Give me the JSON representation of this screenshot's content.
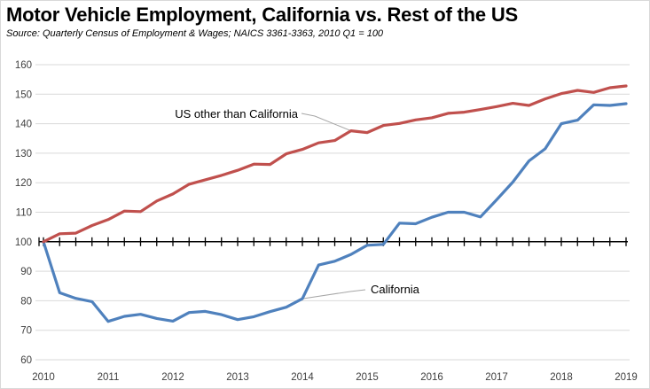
{
  "chart_data": {
    "type": "line",
    "title": "Motor Vehicle Employment, California vs. Rest of the US",
    "subtitle": "Source:  Quarterly Census of Employment & Wages; NAICS 3361-3363, 2010 Q1 = 100",
    "xlabel": "",
    "ylabel": "",
    "xlim": [
      2010,
      2019
    ],
    "ylim": [
      60,
      160
    ],
    "x_ticks": [
      "2010",
      "2011",
      "2012",
      "2013",
      "2014",
      "2015",
      "2016",
      "2017",
      "2018",
      "2019"
    ],
    "y_ticks": [
      "60",
      "70",
      "80",
      "90",
      "100",
      "110",
      "120",
      "130",
      "140",
      "150",
      "160"
    ],
    "baseline": 100,
    "grid": true,
    "legend": "none",
    "x": [
      2010.0,
      2010.25,
      2010.5,
      2010.75,
      2011.0,
      2011.25,
      2011.5,
      2011.75,
      2012.0,
      2012.25,
      2012.5,
      2012.75,
      2013.0,
      2013.25,
      2013.5,
      2013.75,
      2014.0,
      2014.25,
      2014.5,
      2014.75,
      2015.0,
      2015.25,
      2015.5,
      2015.75,
      2016.0,
      2016.25,
      2016.5,
      2016.75,
      2017.0,
      2017.25,
      2017.5,
      2017.75,
      2018.0,
      2018.25,
      2018.5,
      2018.75,
      2019.0
    ],
    "series": [
      {
        "name": "US other than California",
        "color": "#c0504d",
        "values": [
          100,
          102.7,
          102.9,
          105.5,
          107.5,
          110.4,
          110.2,
          113.8,
          116.2,
          119.5,
          121,
          122.5,
          124.2,
          126.3,
          126.2,
          129.8,
          131.3,
          133.5,
          134.3,
          137.6,
          137,
          139.4,
          140.1,
          141.3,
          142,
          143.5,
          143.9,
          144.8,
          145.8,
          146.9,
          146.2,
          148.4,
          150.2,
          151.3,
          150.6,
          152.2,
          152.8
        ]
      },
      {
        "name": "California",
        "color": "#4f81bd",
        "values": [
          100,
          82.7,
          80.8,
          79.7,
          73,
          74.7,
          75.4,
          74,
          73.1,
          76,
          76.4,
          75.3,
          73.6,
          74.6,
          76.3,
          77.8,
          80.7,
          92.1,
          93.4,
          95.7,
          98.8,
          99.1,
          106.3,
          106.1,
          108.3,
          110,
          110,
          108.4,
          114.2,
          120.2,
          127.4,
          131.5,
          140,
          141.2,
          146.4,
          146.2,
          146.8
        ]
      }
    ],
    "annotations": [
      {
        "text": "US other than California",
        "series": "US other than California",
        "point_x": 2014.75
      },
      {
        "text": "California",
        "series": "California",
        "point_x": 2014.0
      }
    ]
  }
}
